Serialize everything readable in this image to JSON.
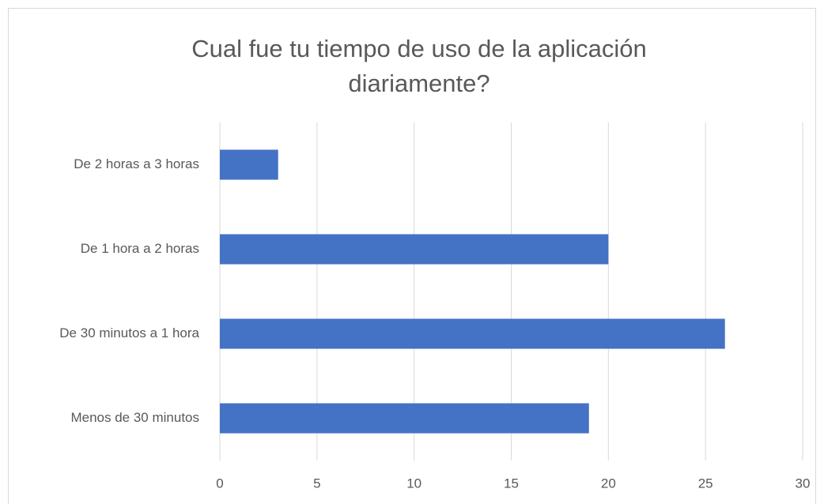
{
  "chart_data": {
    "type": "bar",
    "orientation": "horizontal",
    "title": "Cual fue tu tiempo de uso de la aplicación diariamente?",
    "categories": [
      "De 2 horas a 3 horas",
      "De 1 hora a 2 horas",
      "De 30 minutos a 1 hora",
      "Menos de 30 minutos"
    ],
    "values": [
      3,
      20,
      26,
      19
    ],
    "color": "#4472c4",
    "xlim": [
      0,
      30
    ],
    "xticks": [
      0,
      5,
      10,
      15,
      20,
      25,
      30
    ],
    "grid": true
  }
}
